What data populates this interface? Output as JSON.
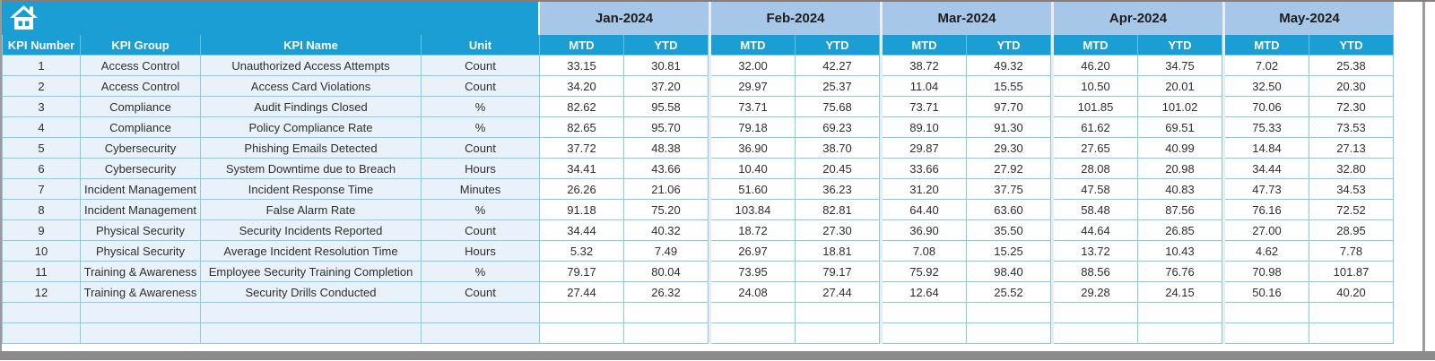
{
  "colors": {
    "teal_header": "#1B9ED4",
    "month_header_bg": "#A6C7E8",
    "grid_line": "#7FD0E2",
    "left_cell_bg": "#E9F2FA",
    "group_divider": "#ECECEC",
    "header_text": "#FFFFFF"
  },
  "header": {
    "home_icon": "home",
    "columns": [
      "KPI Number",
      "KPI Group",
      "KPI Name",
      "Unit"
    ],
    "months": [
      "Jan-2024",
      "Feb-2024",
      "Mar-2024",
      "Apr-2024",
      "May-2024"
    ],
    "sub_columns": [
      "MTD",
      "YTD"
    ]
  },
  "rows": [
    {
      "kpi_number": "1",
      "kpi_group": "Access Control",
      "kpi_name": "Unauthorized Access Attempts",
      "unit": "Count",
      "values": [
        "33.15",
        "30.81",
        "32.00",
        "42.27",
        "38.72",
        "49.32",
        "46.20",
        "34.75",
        "7.02",
        "25.38"
      ]
    },
    {
      "kpi_number": "2",
      "kpi_group": "Access Control",
      "kpi_name": "Access Card Violations",
      "unit": "Count",
      "values": [
        "34.20",
        "37.20",
        "29.97",
        "25.37",
        "11.04",
        "15.55",
        "10.50",
        "20.01",
        "32.50",
        "20.30"
      ]
    },
    {
      "kpi_number": "3",
      "kpi_group": "Compliance",
      "kpi_name": "Audit Findings Closed",
      "unit": "%",
      "values": [
        "82.62",
        "95.58",
        "73.71",
        "75.68",
        "73.71",
        "97.70",
        "101.85",
        "101.02",
        "70.06",
        "72.30"
      ]
    },
    {
      "kpi_number": "4",
      "kpi_group": "Compliance",
      "kpi_name": "Policy Compliance Rate",
      "unit": "%",
      "values": [
        "82.65",
        "95.70",
        "79.18",
        "69.23",
        "89.10",
        "91.30",
        "61.62",
        "69.51",
        "75.33",
        "73.53"
      ]
    },
    {
      "kpi_number": "5",
      "kpi_group": "Cybersecurity",
      "kpi_name": "Phishing Emails Detected",
      "unit": "Count",
      "values": [
        "37.72",
        "48.38",
        "36.90",
        "38.70",
        "29.87",
        "29.30",
        "27.65",
        "40.99",
        "14.84",
        "27.13"
      ]
    },
    {
      "kpi_number": "6",
      "kpi_group": "Cybersecurity",
      "kpi_name": "System Downtime due to Breach",
      "unit": "Hours",
      "values": [
        "34.41",
        "43.66",
        "10.40",
        "20.45",
        "33.66",
        "27.92",
        "28.08",
        "20.98",
        "34.44",
        "32.80"
      ]
    },
    {
      "kpi_number": "7",
      "kpi_group": "Incident Management",
      "kpi_name": "Incident Response Time",
      "unit": "Minutes",
      "values": [
        "26.26",
        "21.06",
        "51.60",
        "36.23",
        "31.20",
        "37.75",
        "47.58",
        "40.83",
        "47.73",
        "34.53"
      ]
    },
    {
      "kpi_number": "8",
      "kpi_group": "Incident Management",
      "kpi_name": "False Alarm Rate",
      "unit": "%",
      "values": [
        "91.18",
        "75.20",
        "103.84",
        "82.81",
        "64.40",
        "63.60",
        "58.48",
        "87.56",
        "76.16",
        "72.52"
      ]
    },
    {
      "kpi_number": "9",
      "kpi_group": "Physical Security",
      "kpi_name": "Security Incidents Reported",
      "unit": "Count",
      "values": [
        "34.44",
        "40.32",
        "18.72",
        "27.30",
        "36.90",
        "35.50",
        "44.64",
        "26.85",
        "27.00",
        "28.95"
      ]
    },
    {
      "kpi_number": "10",
      "kpi_group": "Physical Security",
      "kpi_name": "Average Incident Resolution Time",
      "unit": "Hours",
      "values": [
        "5.32",
        "7.49",
        "26.97",
        "18.81",
        "7.08",
        "15.25",
        "13.72",
        "10.43",
        "4.62",
        "7.78"
      ]
    },
    {
      "kpi_number": "11",
      "kpi_group": "Training & Awareness",
      "kpi_name": "Employee Security Training Completion",
      "unit": "%",
      "values": [
        "79.17",
        "80.04",
        "73.95",
        "79.17",
        "75.92",
        "98.40",
        "88.56",
        "76.76",
        "70.98",
        "101.87"
      ]
    },
    {
      "kpi_number": "12",
      "kpi_group": "Training & Awareness",
      "kpi_name": "Security Drills Conducted",
      "unit": "Count",
      "values": [
        "27.44",
        "26.32",
        "24.08",
        "27.44",
        "12.64",
        "25.52",
        "29.28",
        "24.15",
        "50.16",
        "40.20"
      ]
    }
  ],
  "empty_rows": 2
}
